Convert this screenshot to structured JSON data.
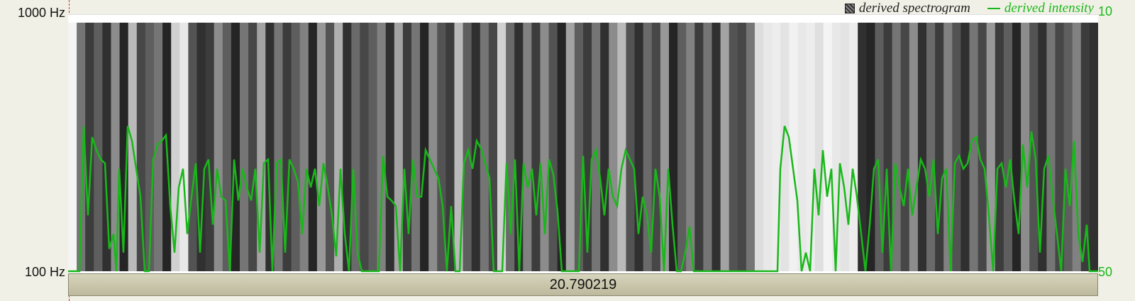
{
  "axis": {
    "left_top": "1000 Hz",
    "left_bottom": "100 Hz",
    "right_top": "10",
    "right_bottom": "50"
  },
  "legend": {
    "spectrogram_label": "derived spectrogram",
    "intensity_label": "derived intensity",
    "intensity_color": "#19b81a"
  },
  "time_bar": {
    "duration": "20.790219"
  },
  "colors": {
    "curve": "#19b81a",
    "background": "#f1f0e6",
    "time_bar": "#cdc9ae"
  },
  "spectrogram_bands": [
    0.05,
    0.6,
    0.85,
    0.7,
    0.9,
    0.5,
    0.95,
    0.3,
    0.8,
    0.7,
    0.6,
    0.95,
    0.2,
    0.1,
    0.75,
    0.9,
    0.85,
    0.5,
    0.7,
    0.95,
    0.6,
    0.8,
    0.4,
    0.9,
    0.6,
    0.85,
    0.7,
    0.55,
    0.95,
    0.45,
    0.75,
    0.35,
    0.9,
    0.65,
    0.8,
    0.7,
    0.55,
    0.9,
    0.4,
    0.85,
    0.6,
    0.95,
    0.5,
    0.75,
    0.85,
    0.3,
    0.7,
    0.9,
    0.6,
    0.8,
    0.2,
    0.65,
    0.9,
    0.55,
    0.85,
    0.5,
    0.75,
    0.95,
    0.4,
    0.7,
    0.85,
    0.6,
    0.9,
    0.5,
    0.3,
    0.75,
    0.9,
    0.65,
    0.8,
    0.45,
    0.95,
    0.7,
    0.55,
    0.85,
    0.6,
    0.9,
    0.4,
    0.75,
    0.8,
    0.6,
    0.15,
    0.1,
    0.08,
    0.12,
    0.06,
    0.1,
    0.08,
    0.14,
    0.05,
    0.1,
    0.12,
    0.08,
    0.9,
    0.95,
    0.7,
    0.85,
    0.6,
    0.8,
    0.5,
    0.9,
    0.65,
    0.85,
    0.55,
    0.75,
    0.9,
    0.6,
    0.8,
    0.45,
    0.85,
    0.7,
    0.95,
    0.5,
    0.75,
    0.9,
    0.6,
    0.8,
    0.7,
    0.55,
    0.85,
    0.9
  ],
  "intensity_curve": [
    [
      0,
      0
    ],
    [
      8,
      0
    ],
    [
      16,
      0
    ],
    [
      22,
      0.78
    ],
    [
      28,
      0.3
    ],
    [
      34,
      0.72
    ],
    [
      40,
      0.65
    ],
    [
      46,
      0.6
    ],
    [
      52,
      0.58
    ],
    [
      58,
      0.12
    ],
    [
      64,
      0.2
    ],
    [
      68,
      0.0
    ],
    [
      72,
      0.55
    ],
    [
      78,
      0.1
    ],
    [
      84,
      0.78
    ],
    [
      90,
      0.7
    ],
    [
      96,
      0.55
    ],
    [
      102,
      0.4
    ],
    [
      108,
      0.0
    ],
    [
      114,
      0.0
    ],
    [
      120,
      0.6
    ],
    [
      126,
      0.68
    ],
    [
      132,
      0.7
    ],
    [
      138,
      0.73
    ],
    [
      144,
      0.35
    ],
    [
      150,
      0.1
    ],
    [
      156,
      0.45
    ],
    [
      162,
      0.55
    ],
    [
      168,
      0.2
    ],
    [
      174,
      0.4
    ],
    [
      180,
      0.58
    ],
    [
      186,
      0.1
    ],
    [
      192,
      0.55
    ],
    [
      198,
      0.6
    ],
    [
      204,
      0.25
    ],
    [
      210,
      0.55
    ],
    [
      216,
      0.4
    ],
    [
      222,
      0.38
    ],
    [
      228,
      0.0
    ],
    [
      234,
      0.6
    ],
    [
      240,
      0.38
    ],
    [
      246,
      0.55
    ],
    [
      252,
      0.45
    ],
    [
      258,
      0.38
    ],
    [
      264,
      0.55
    ],
    [
      270,
      0.1
    ],
    [
      276,
      0.58
    ],
    [
      282,
      0.6
    ],
    [
      288,
      0.0
    ],
    [
      294,
      0.58
    ],
    [
      300,
      0.6
    ],
    [
      306,
      0.1
    ],
    [
      312,
      0.6
    ],
    [
      318,
      0.55
    ],
    [
      324,
      0.48
    ],
    [
      330,
      0.2
    ],
    [
      336,
      0.55
    ],
    [
      342,
      0.45
    ],
    [
      348,
      0.55
    ],
    [
      354,
      0.35
    ],
    [
      360,
      0.58
    ],
    [
      366,
      0.45
    ],
    [
      372,
      0.3
    ],
    [
      378,
      0.08
    ],
    [
      384,
      0.55
    ],
    [
      390,
      0.2
    ],
    [
      396,
      0.0
    ],
    [
      402,
      0.55
    ],
    [
      408,
      0.1
    ],
    [
      414,
      0.0
    ],
    [
      420,
      0.0
    ],
    [
      426,
      0.0
    ],
    [
      432,
      0.0
    ],
    [
      438,
      0.0
    ],
    [
      444,
      0.62
    ],
    [
      450,
      0.4
    ],
    [
      456,
      0.38
    ],
    [
      462,
      0.35
    ],
    [
      468,
      0.0
    ],
    [
      474,
      0.55
    ],
    [
      480,
      0.2
    ],
    [
      486,
      0.6
    ],
    [
      492,
      0.4
    ],
    [
      498,
      0.4
    ],
    [
      504,
      0.65
    ],
    [
      510,
      0.6
    ],
    [
      516,
      0.55
    ],
    [
      522,
      0.5
    ],
    [
      528,
      0.35
    ],
    [
      534,
      0.0
    ],
    [
      540,
      0.35
    ],
    [
      546,
      0.0
    ],
    [
      552,
      0.0
    ],
    [
      558,
      0.58
    ],
    [
      564,
      0.65
    ],
    [
      570,
      0.55
    ],
    [
      576,
      0.7
    ],
    [
      582,
      0.66
    ],
    [
      588,
      0.58
    ],
    [
      594,
      0.5
    ],
    [
      600,
      0.0
    ],
    [
      606,
      0.0
    ],
    [
      612,
      0.0
    ],
    [
      618,
      0.58
    ],
    [
      624,
      0.2
    ],
    [
      630,
      0.6
    ],
    [
      636,
      0.0
    ],
    [
      642,
      0.58
    ],
    [
      648,
      0.45
    ],
    [
      654,
      0.55
    ],
    [
      660,
      0.3
    ],
    [
      666,
      0.58
    ],
    [
      672,
      0.2
    ],
    [
      678,
      0.6
    ],
    [
      684,
      0.52
    ],
    [
      690,
      0.32
    ],
    [
      696,
      0.0
    ],
    [
      702,
      0.0
    ],
    [
      708,
      0.0
    ],
    [
      714,
      0.0
    ],
    [
      720,
      0.0
    ],
    [
      726,
      0.62
    ],
    [
      732,
      0.1
    ],
    [
      738,
      0.6
    ],
    [
      744,
      0.65
    ],
    [
      750,
      0.5
    ],
    [
      756,
      0.3
    ],
    [
      762,
      0.55
    ],
    [
      768,
      0.4
    ],
    [
      774,
      0.35
    ],
    [
      780,
      0.55
    ],
    [
      786,
      0.65
    ],
    [
      792,
      0.6
    ],
    [
      798,
      0.55
    ],
    [
      804,
      0.2
    ],
    [
      810,
      0.4
    ],
    [
      816,
      0.3
    ],
    [
      822,
      0.1
    ],
    [
      828,
      0.55
    ],
    [
      834,
      0.4
    ],
    [
      840,
      0.0
    ],
    [
      846,
      0.55
    ],
    [
      852,
      0.25
    ],
    [
      858,
      0.0
    ],
    [
      864,
      0.0
    ],
    [
      870,
      0.1
    ],
    [
      876,
      0.24
    ],
    [
      882,
      0.0
    ],
    [
      888,
      0.0
    ],
    [
      894,
      0.0
    ],
    [
      900,
      0.0
    ],
    [
      910,
      0.0
    ],
    [
      920,
      0.0
    ],
    [
      930,
      0.0
    ],
    [
      940,
      0.0
    ],
    [
      950,
      0.0
    ],
    [
      960,
      0.0
    ],
    [
      970,
      0.0
    ],
    [
      980,
      0.0
    ],
    [
      990,
      0.0
    ],
    [
      1000,
      0.0
    ],
    [
      1004,
      0.55
    ],
    [
      1010,
      0.78
    ],
    [
      1016,
      0.72
    ],
    [
      1022,
      0.55
    ],
    [
      1028,
      0.38
    ],
    [
      1034,
      0.0
    ],
    [
      1040,
      0.1
    ],
    [
      1046,
      0.0
    ],
    [
      1052,
      0.55
    ],
    [
      1058,
      0.3
    ],
    [
      1064,
      0.65
    ],
    [
      1070,
      0.4
    ],
    [
      1076,
      0.55
    ],
    [
      1082,
      0.0
    ],
    [
      1088,
      0.58
    ],
    [
      1094,
      0.45
    ],
    [
      1100,
      0.25
    ],
    [
      1106,
      0.55
    ],
    [
      1112,
      0.4
    ],
    [
      1118,
      0.2
    ],
    [
      1124,
      0.0
    ],
    [
      1130,
      0.25
    ],
    [
      1136,
      0.55
    ],
    [
      1142,
      0.6
    ],
    [
      1148,
      0.1
    ],
    [
      1154,
      0.55
    ],
    [
      1160,
      0.0
    ],
    [
      1166,
      0.58
    ],
    [
      1172,
      0.45
    ],
    [
      1178,
      0.35
    ],
    [
      1184,
      0.55
    ],
    [
      1190,
      0.3
    ],
    [
      1196,
      0.45
    ],
    [
      1202,
      0.6
    ],
    [
      1208,
      0.55
    ],
    [
      1214,
      0.4
    ],
    [
      1220,
      0.6
    ],
    [
      1226,
      0.2
    ],
    [
      1232,
      0.5
    ],
    [
      1238,
      0.55
    ],
    [
      1244,
      0.0
    ],
    [
      1250,
      0.58
    ],
    [
      1256,
      0.62
    ],
    [
      1262,
      0.55
    ],
    [
      1268,
      0.58
    ],
    [
      1274,
      0.7
    ],
    [
      1280,
      0.72
    ],
    [
      1286,
      0.6
    ],
    [
      1292,
      0.55
    ],
    [
      1298,
      0.3
    ],
    [
      1304,
      0.0
    ],
    [
      1310,
      0.55
    ],
    [
      1316,
      0.58
    ],
    [
      1322,
      0.45
    ],
    [
      1328,
      0.6
    ],
    [
      1334,
      0.38
    ],
    [
      1340,
      0.2
    ],
    [
      1346,
      0.68
    ],
    [
      1352,
      0.45
    ],
    [
      1358,
      0.75
    ],
    [
      1364,
      0.6
    ],
    [
      1370,
      0.1
    ],
    [
      1376,
      0.55
    ],
    [
      1382,
      0.62
    ],
    [
      1388,
      0.4
    ],
    [
      1394,
      0.2
    ],
    [
      1400,
      0.0
    ],
    [
      1406,
      0.55
    ],
    [
      1412,
      0.35
    ],
    [
      1418,
      0.7
    ],
    [
      1424,
      0.2
    ],
    [
      1430,
      0.05
    ],
    [
      1436,
      0.25
    ],
    [
      1440,
      0.0
    ],
    [
      1446,
      0.0
    ],
    [
      1452,
      0.0
    ]
  ]
}
